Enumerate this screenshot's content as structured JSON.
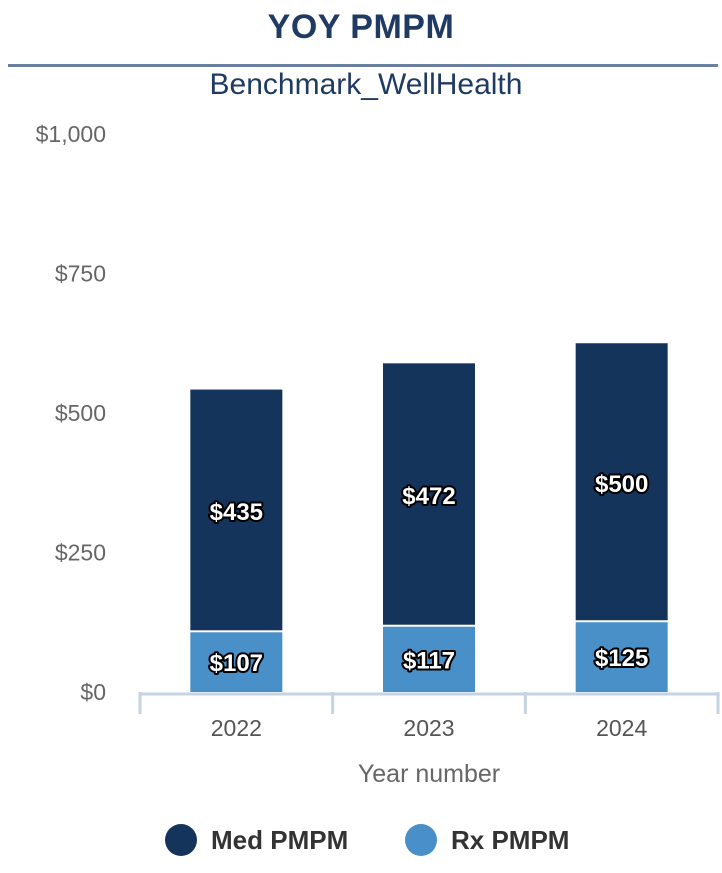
{
  "header": {
    "title": "YOY PMPM",
    "subtitle": "Benchmark_WellHealth"
  },
  "chart_data": {
    "type": "bar",
    "stacked": true,
    "title": "YOY PMPM",
    "subtitle": "Benchmark_WellHealth",
    "xlabel": "Year number",
    "ylabel": "",
    "categories": [
      "2022",
      "2023",
      "2024"
    ],
    "ylim": [
      0,
      1000
    ],
    "yticks": [
      0,
      250,
      500,
      750,
      1000
    ],
    "ytick_labels": [
      "$0",
      "$250",
      "$500",
      "$750",
      "$1,000"
    ],
    "grid": false,
    "legend_position": "bottom",
    "series": [
      {
        "name": "Rx PMPM",
        "values": [
          107,
          117,
          125
        ],
        "labels": [
          "$107",
          "$117",
          "$125"
        ],
        "color": "#4a90c8"
      },
      {
        "name": "Med PMPM",
        "values": [
          435,
          472,
          500
        ],
        "labels": [
          "$435",
          "$472",
          "$500"
        ],
        "color": "#14345c"
      }
    ]
  },
  "legend": {
    "items": [
      {
        "label": "Med PMPM",
        "color": "#14345c"
      },
      {
        "label": "Rx PMPM",
        "color": "#4a90c8"
      }
    ]
  }
}
